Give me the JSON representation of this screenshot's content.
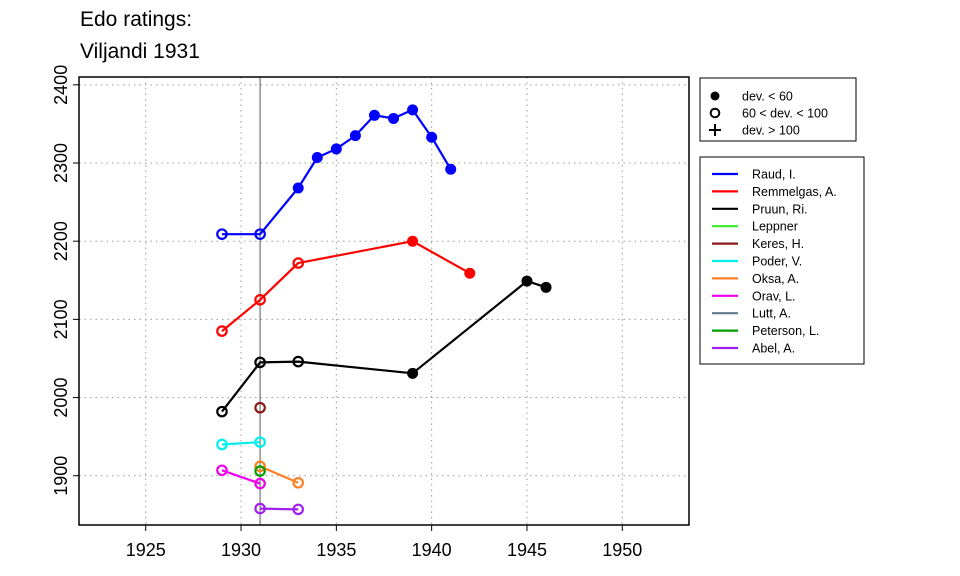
{
  "chart_data": {
    "type": "line",
    "title_lines": [
      "Edo ratings:",
      "Viljandi 1931"
    ],
    "xlabel": "",
    "ylabel": "",
    "xlim": [
      1921.5,
      1953.5
    ],
    "ylim": [
      1837,
      2410
    ],
    "x_ticks": [
      1925,
      1930,
      1935,
      1940,
      1945,
      1950
    ],
    "y_ticks": [
      1900,
      2000,
      2100,
      2200,
      2300,
      2400
    ],
    "grid": "dotted",
    "reference_line_x": 1931,
    "marker_legend": [
      {
        "symbol": "filled-circle",
        "label": "dev. < 60"
      },
      {
        "symbol": "open-circle",
        "label": "60 < dev. < 100"
      },
      {
        "symbol": "plus",
        "label": "dev. > 100"
      }
    ],
    "series": [
      {
        "name": "Raud, I.",
        "color": "#0000ff",
        "points": [
          {
            "x": 1929,
            "y": 2209,
            "m": "open"
          },
          {
            "x": 1931,
            "y": 2209,
            "m": "open"
          },
          {
            "x": 1933,
            "y": 2268,
            "m": "filled"
          },
          {
            "x": 1934,
            "y": 2307,
            "m": "filled"
          },
          {
            "x": 1935,
            "y": 2318,
            "m": "filled"
          },
          {
            "x": 1936,
            "y": 2335,
            "m": "filled"
          },
          {
            "x": 1937,
            "y": 2361,
            "m": "filled"
          },
          {
            "x": 1938,
            "y": 2357,
            "m": "filled"
          },
          {
            "x": 1939,
            "y": 2368,
            "m": "filled"
          },
          {
            "x": 1940,
            "y": 2333,
            "m": "filled"
          },
          {
            "x": 1941,
            "y": 2292,
            "m": "filled"
          }
        ]
      },
      {
        "name": "Remmelgas, A.",
        "color": "#ff0000",
        "points": [
          {
            "x": 1929,
            "y": 2085,
            "m": "open"
          },
          {
            "x": 1931,
            "y": 2125,
            "m": "open"
          },
          {
            "x": 1933,
            "y": 2172,
            "m": "open"
          },
          {
            "x": 1939,
            "y": 2200,
            "m": "filled"
          },
          {
            "x": 1942,
            "y": 2159,
            "m": "filled"
          }
        ]
      },
      {
        "name": "Pruun, Ri.",
        "color": "#000000",
        "points": [
          {
            "x": 1929,
            "y": 1982,
            "m": "open"
          },
          {
            "x": 1931,
            "y": 2045,
            "m": "open"
          },
          {
            "x": 1933,
            "y": 2046,
            "m": "open"
          },
          {
            "x": 1939,
            "y": 2031,
            "m": "filled"
          },
          {
            "x": 1945,
            "y": 2149,
            "m": "filled"
          },
          {
            "x": 1946,
            "y": 2141,
            "m": "filled"
          }
        ]
      },
      {
        "name": "Leppner",
        "color": "#33ee22",
        "points": []
      },
      {
        "name": "Keres, H.",
        "color": "#8b1a1a",
        "points": [
          {
            "x": 1931,
            "y": 1987,
            "m": "open"
          }
        ]
      },
      {
        "name": "Poder, V.",
        "color": "#00eeee",
        "points": [
          {
            "x": 1929,
            "y": 1940,
            "m": "open"
          },
          {
            "x": 1931,
            "y": 1943,
            "m": "open"
          }
        ]
      },
      {
        "name": "Oksa, A.",
        "color": "#ff7f24",
        "points": [
          {
            "x": 1931,
            "y": 1912,
            "m": "open"
          },
          {
            "x": 1933,
            "y": 1891,
            "m": "open"
          }
        ]
      },
      {
        "name": "Orav, L.",
        "color": "#ee00ee",
        "points": [
          {
            "x": 1929,
            "y": 1907,
            "m": "open"
          },
          {
            "x": 1931,
            "y": 1890,
            "m": "open"
          }
        ]
      },
      {
        "name": "Lutt, A.",
        "color": "#607b8b",
        "points": []
      },
      {
        "name": "Peterson, L.",
        "color": "#00a000",
        "points": [
          {
            "x": 1931,
            "y": 1906,
            "m": "open"
          }
        ]
      },
      {
        "name": "Abel, A.",
        "color": "#a020f0",
        "points": [
          {
            "x": 1931,
            "y": 1858,
            "m": "open"
          },
          {
            "x": 1933,
            "y": 1857,
            "m": "open"
          }
        ]
      }
    ]
  }
}
